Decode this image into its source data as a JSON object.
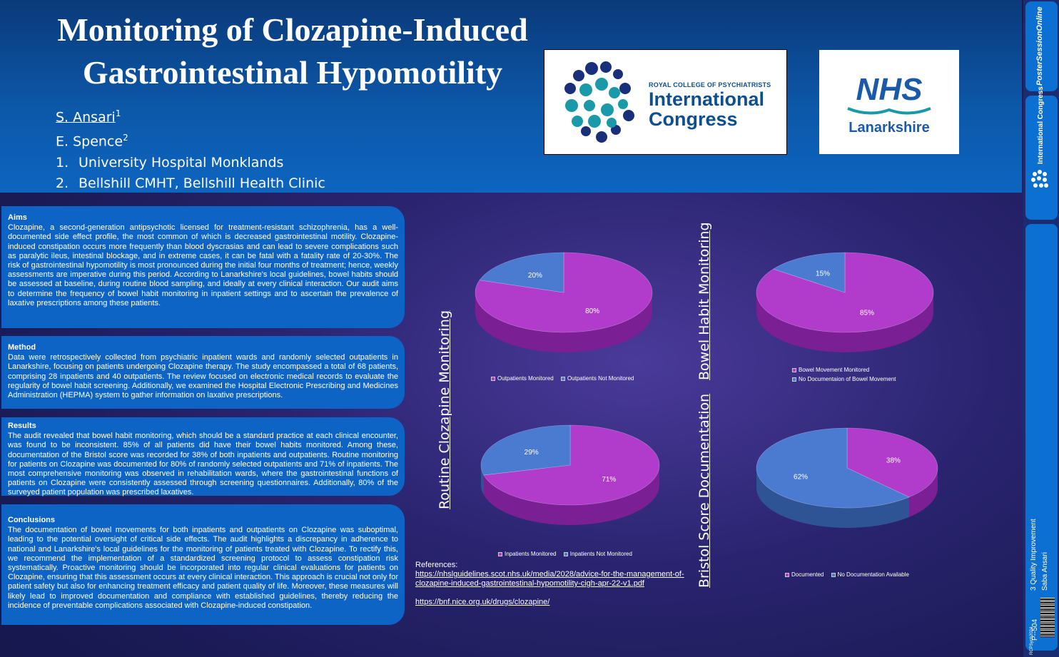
{
  "header": {
    "title_line1": "Monitoring of Clozapine-Induced",
    "title_line2": "Gastrointestinal Hypomotility",
    "author1": "S. Ansari",
    "author1_sup": "1",
    "author2": "E. Spence",
    "author2_sup": "2",
    "affiliations": [
      {
        "num": "1.",
        "name": "University Hospital Monklands"
      },
      {
        "num": "2.",
        "name": "Bellshill CMHT, Bellshill Health Clinic"
      }
    ]
  },
  "logos": {
    "rcpsych_line1": "ROYAL COLLEGE OF PSYCHIATRISTS",
    "rcpsych_line2": "International",
    "rcpsych_line3": "Congress",
    "nhs_mark": "NHS",
    "nhs_name": "Lanarkshire"
  },
  "sections": {
    "aims": {
      "heading": "Aims",
      "body": "Clozapine, a second-generation antipsychotic licensed for treatment-resistant schizophrenia, has a well-documented side effect profile, the most common of which is decreased gastrointestinal motility. Clozapine-induced constipation occurs more frequently than blood dyscrasias and can lead to severe complications such as paralytic ileus, intestinal blockage, and in extreme cases, it can be fatal with a fatality rate of 20-30%. The risk of gastrointestinal hypomotility is most pronounced during the initial four months of treatment; hence, weekly assessments are imperative during this period. According to Lanarkshire's local guidelines, bowel habits should be assessed at baseline, during routine blood sampling, and ideally at every clinical interaction. Our audit aims to determine the frequency of bowel habit monitoring in inpatient settings and to ascertain the prevalence of laxative prescriptions among these patients."
    },
    "method": {
      "heading": "Method",
      "body": "Data were retrospectively collected from psychiatric inpatient wards and randomly selected outpatients in Lanarkshire, focusing on patients undergoing Clozapine therapy. The study encompassed a total of 68 patients, comprising 28 inpatients and 40 outpatients. The review focused on electronic medical records to evaluate the regularity of bowel habit screening. Additionally, we examined the Hospital Electronic Prescribing and Medicines Administration (HEPMA) system to gather information on laxative prescriptions."
    },
    "results": {
      "heading": "Results",
      "body": "The audit revealed that bowel habit monitoring, which should be a standard practice at each clinical encounter, was found to be inconsistent. 85% of all patients did have their bowel habits monitored. Among these, documentation of the Bristol score was recorded for 38% of both inpatients and outpatients. Routine monitoring for patients on Clozapine was documented for 80% of randomly selected outpatients and 71% of inpatients. The most comprehensive monitoring was observed in rehabilitation wards, where the gastrointestinal functions of patients on Clozapine were consistently assessed through screening questionnaires. Additionally, 80% of the surveyed patient population was prescribed laxatives."
    },
    "conclusions": {
      "heading": "Conclusions",
      "body": "The documentation of bowel movements for both inpatients and outpatients on Clozapine was suboptimal, leading to the potential oversight of critical side effects. The audit highlights a discrepancy in adherence to national and Lanarkshire's local guidelines for the monitoring of patients treated with Clozapine. To rectify this, we recommend the implementation of a standardized screening protocol to assess constipation risk systematically. Proactive monitoring should be incorporated into regular clinical evaluations for patients on Clozapine, ensuring that this assessment occurs at every clinical interaction. This approach is crucial not only for patient safety but also for enhancing treatment efficacy and patient quality of life. Moreover, these measures will likely lead to improved documentation and compliance with established guidelines, thereby reducing the incidence of preventable complications associated with Clozapine-induced constipation."
    }
  },
  "chart_titles": {
    "routine": "Routine Clozapine Monitoring",
    "bowel": "Bowel Habit Monitoring",
    "bristol": "Bristol Score Documentation"
  },
  "chart_data": [
    {
      "type": "pie",
      "series": [
        {
          "name": "Outpatients Monitored",
          "value": 80
        },
        {
          "name": "Outpatients Not Monitored",
          "value": 20
        }
      ],
      "labels": [
        "80%",
        "20%"
      ],
      "legend": "bottom"
    },
    {
      "type": "pie",
      "series": [
        {
          "name": "Inpatients Monitored",
          "value": 71
        },
        {
          "name": "Inpatients Not Monitored",
          "value": 29
        }
      ],
      "labels": [
        "71%",
        "29%"
      ],
      "legend": "bottom"
    },
    {
      "type": "pie",
      "series": [
        {
          "name": "Bowel Movement Monitored",
          "value": 85
        },
        {
          "name": "No Documentaion of Bowel Movement",
          "value": 15
        }
      ],
      "labels": [
        "85%",
        "15%"
      ],
      "legend": "bottom"
    },
    {
      "type": "pie",
      "series": [
        {
          "name": "Documented",
          "value": 38
        },
        {
          "name": "No Documentation Available",
          "value": 62
        }
      ],
      "labels": [
        "38%",
        "62%"
      ],
      "legend": "bottom"
    }
  ],
  "colors": {
    "magenta": "#b13ccc",
    "blue": "#4a7bd0"
  },
  "references": {
    "heading": "References:",
    "link1": "https://nhslguidelines.scot.nhs.uk/media/2028/advice-for-the-management-of-clozapine-induced-gastrointestinal-hypomotility-cigh-apr-22-v1.pdf",
    "link2": "https://bnf.nice.org.uk/drugs/clozapine/"
  },
  "sidebar": {
    "brand": "PosterSessionOnline",
    "congress": "International Congress",
    "category": "3 Quality Improvement",
    "author": "Saba Ansari",
    "poster_id": "P--504",
    "code": "RCPSych2024"
  }
}
